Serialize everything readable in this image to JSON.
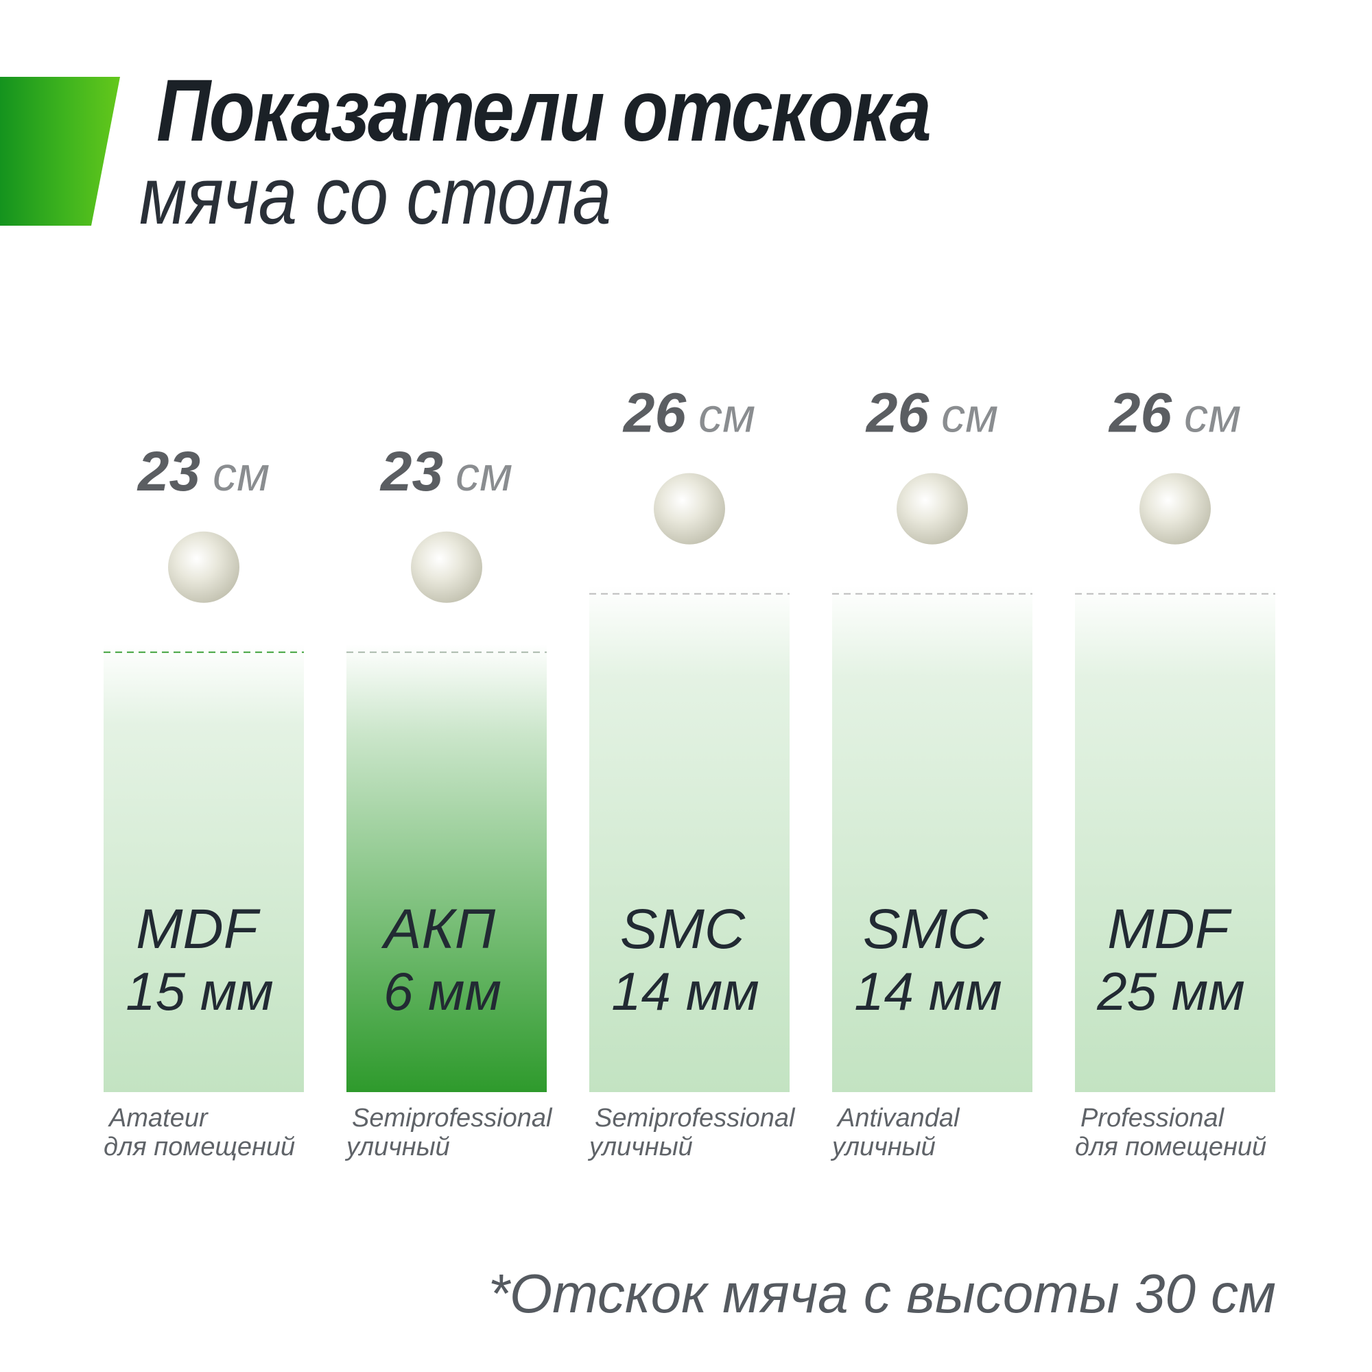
{
  "header": {
    "title_line1": "Показатели отскока",
    "title_line2": "мяча со стола",
    "accent_color": "#2fa81f"
  },
  "footnote": "*Отскок мяча с высоты 30 см",
  "chart_data": {
    "type": "bar",
    "title": "Показатели отскока мяча со стола",
    "unit": "см",
    "ylim": [
      0,
      30
    ],
    "categories": [
      "MDF 15 мм",
      "АКП 6 мм",
      "SMC 14 мм",
      "SMC 14 мм",
      "MDF 25 мм"
    ],
    "values": [
      23,
      23,
      26,
      26,
      26
    ],
    "bars": [
      {
        "material": "MDF",
        "thickness": "15 мм",
        "value": 23,
        "unit": "см",
        "class": "Amateur",
        "usage": "для помещений",
        "highlight": false
      },
      {
        "material": "АКП",
        "thickness": "6 мм",
        "value": 23,
        "unit": "см",
        "class": "Semiprofessional",
        "usage": "уличный",
        "highlight": true
      },
      {
        "material": "SMC",
        "thickness": "14 мм",
        "value": 26,
        "unit": "см",
        "class": "Semiprofessional",
        "usage": "уличный",
        "highlight": false
      },
      {
        "material": "SMC",
        "thickness": "14 мм",
        "value": 26,
        "unit": "см",
        "class": "Antivandal",
        "usage": "уличный",
        "highlight": false
      },
      {
        "material": "MDF",
        "thickness": "25 мм",
        "value": 26,
        "unit": "см",
        "class": "Professional",
        "usage": "для помещений",
        "highlight": false
      }
    ],
    "colors": {
      "bar_light": "#c3e3c2",
      "bar_highlight": "#2e9a2c",
      "ball": "#e9e8dc",
      "value_number": "#5b5e62",
      "value_unit": "#8a8d90",
      "bar_text": "#222a33",
      "caption_text": "#5f6368"
    }
  }
}
